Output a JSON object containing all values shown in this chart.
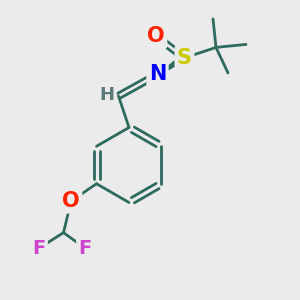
{
  "bg_color": "#ebebeb",
  "bond_color": "#2d6b5e",
  "bond_width": 2.0,
  "atom_colors": {
    "O": "#ff2200",
    "S": "#cccc00",
    "N": "#0000ff",
    "F": "#cc44cc",
    "H": "#5a7a7a"
  },
  "font_size_atoms": 15,
  "font_size_small": 12,
  "figsize": [
    3.0,
    3.0
  ],
  "dpi": 100
}
